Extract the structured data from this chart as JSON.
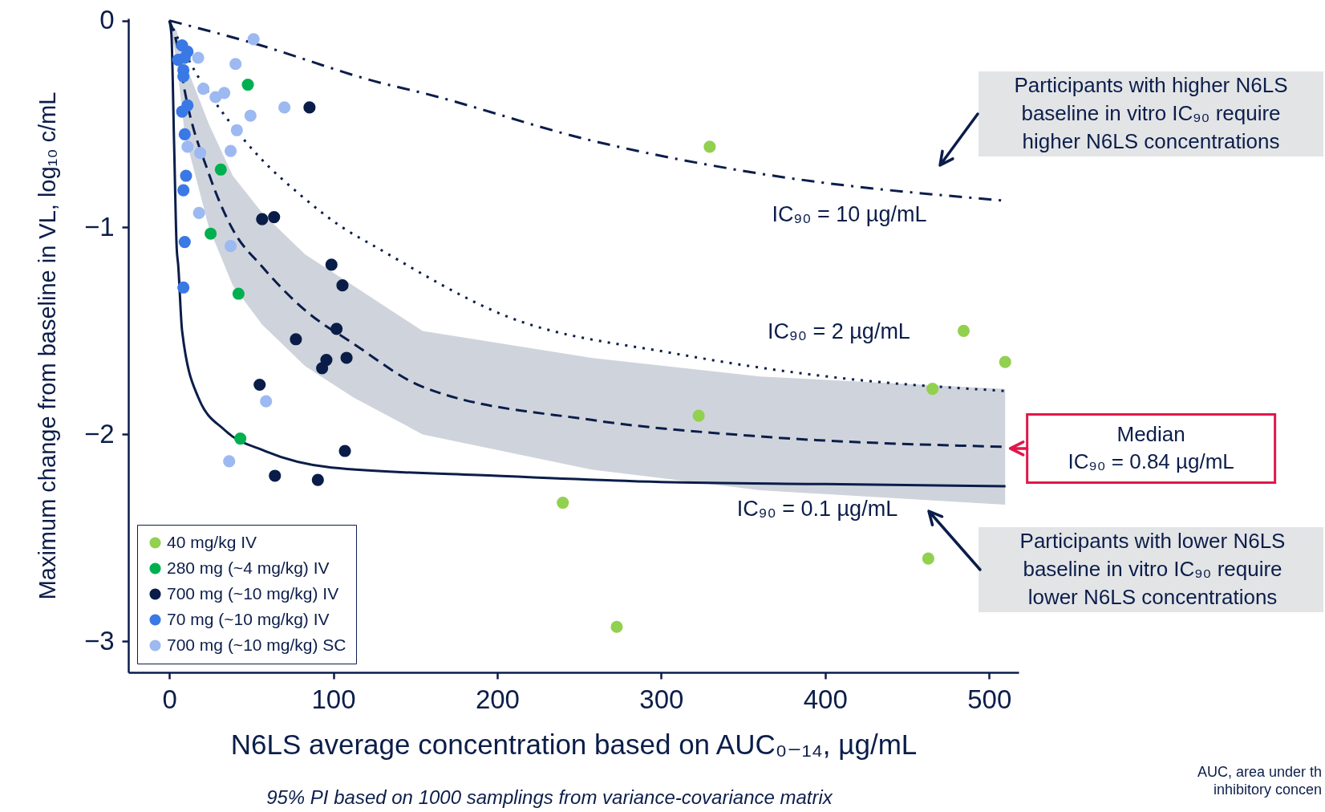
{
  "chart_data": {
    "type": "scatter",
    "xlabel": "N6LS average concentration based on AUC₀₋₁₄, µg/mL",
    "ylabel": "Maximum change from baseline in VL, log₁₀ c/mL",
    "xlim": [
      -25,
      518
    ],
    "ylim": [
      -3.15,
      0.01
    ],
    "xticks": [
      0,
      100,
      200,
      300,
      400,
      500
    ],
    "yticks": [
      0,
      -1,
      -2,
      -3
    ],
    "grid": false,
    "legend": "bottom left",
    "series": [
      {
        "type": "line",
        "color": "#0b1d4a",
        "line_style": "dashed",
        "x": [
          0,
          4.5,
          9.4,
          24.1,
          38.7,
          56.7,
          82.8,
          112,
          154.5,
          257.5,
          360.4,
          509.8
        ],
        "values": [
          0,
          -0.11,
          -0.34,
          -0.74,
          -1.01,
          -1.19,
          -1.4,
          -1.56,
          -1.77,
          -1.93,
          -2.01,
          -2.06
        ],
        "lower": [
          0,
          -0.2,
          -0.55,
          -1.0,
          -1.28,
          -1.47,
          -1.67,
          -1.82,
          -2.0,
          -2.17,
          -2.27,
          -2.34
        ],
        "upper": [
          0,
          -0.05,
          -0.2,
          -0.5,
          -0.75,
          -0.93,
          -1.13,
          -1.28,
          -1.5,
          -1.63,
          -1.72,
          -1.78
        ]
      },
      {
        "type": "line",
        "color": "#0b1d4a",
        "line_style": "dashdot",
        "x": [
          0,
          51.5,
          128.4,
          154.5,
          257.5,
          360.4,
          508.8
        ],
        "values": [
          0,
          -0.11,
          -0.3,
          -0.35,
          -0.58,
          -0.74,
          -0.87
        ]
      },
      {
        "type": "line",
        "color": "#0b1d4a",
        "line_style": "dotted",
        "x": [
          0,
          16,
          33.9,
          55,
          79.5,
          105.6,
          125,
          206,
          309,
          412,
          509.8
        ],
        "values": [
          0,
          -0.25,
          -0.46,
          -0.66,
          -0.84,
          -1.0,
          -1.09,
          -1.43,
          -1.61,
          -1.73,
          -1.79
        ]
      },
      {
        "type": "line",
        "color": "#0b1d4a",
        "line_style": "solid",
        "x": [
          0,
          1.3,
          2.9,
          4.5,
          5.4,
          7.8,
          17.6,
          33.9,
          58.3,
          99,
          200,
          300,
          400,
          510
        ],
        "values": [
          0,
          -0.07,
          -0.59,
          -1.1,
          -1.18,
          -1.5,
          -1.82,
          -1.98,
          -2.08,
          -2.16,
          -2.2,
          -2.23,
          -2.24,
          -2.25
        ]
      },
      {
        "marker": "circle",
        "name": "40 mg/kg IV",
        "color": "#92d050",
        "x": [
          329.6,
          484.5,
          509.8,
          465.5,
          322.9,
          240,
          462.9,
          272.9
        ],
        "values": [
          -0.61,
          -1.5,
          -1.65,
          -1.78,
          -1.91,
          -2.33,
          -2.6,
          -2.93
        ]
      },
      {
        "marker": "circle",
        "name": "280 mg (~4 mg/kg) IV",
        "color": "#00b050",
        "x": [
          47.9,
          31.4,
          25.2,
          42.2,
          43.3
        ],
        "values": [
          -0.31,
          -0.72,
          -1.03,
          -1.32,
          -2.02
        ]
      },
      {
        "marker": "circle",
        "name": "700 mg (~10 mg/kg) IV",
        "color": "#0a1c48",
        "x": [
          85.5,
          56.6,
          63.9,
          98.9,
          105.6,
          77.2,
          102,
          95.8,
          93.2,
          108.1,
          55.1,
          107.1,
          64.4,
          90.6
        ],
        "values": [
          -0.42,
          -0.96,
          -0.95,
          -1.18,
          -1.28,
          -1.54,
          -1.49,
          -1.64,
          -1.68,
          -1.63,
          -1.76,
          -2.08,
          -2.2,
          -2.22
        ]
      },
      {
        "marker": "circle",
        "name": "70 mg (~10 mg/kg) IV",
        "color": "#3a78e6",
        "x": [
          7.8,
          11.1,
          5.4,
          9.4,
          8.6,
          8.6,
          11.1,
          7.8,
          9.4,
          10.2,
          8.6,
          9.4,
          8.6
        ],
        "values": [
          -0.12,
          -0.15,
          -0.19,
          -0.18,
          -0.24,
          -0.27,
          -0.41,
          -0.44,
          -0.55,
          -0.75,
          -0.82,
          -1.07,
          -1.29
        ]
      },
      {
        "marker": "circle",
        "name": "700 mg (~10 mg/kg) SC",
        "color": "#9db9f2",
        "x": [
          51.4,
          17.6,
          40.4,
          20.8,
          28.2,
          33.5,
          70.2,
          49.5,
          41.2,
          11.1,
          18.8,
          37.4,
          18.1,
          37.4,
          59,
          36.5
        ],
        "values": [
          -0.09,
          -0.18,
          -0.21,
          -0.33,
          -0.37,
          -0.35,
          -0.42,
          -0.46,
          -0.53,
          -0.61,
          -0.64,
          -0.63,
          -0.93,
          -1.09,
          -1.84,
          -2.13
        ]
      }
    ],
    "annotations": [
      "95% PI based on 1000 samplings from variance-covariance matrix",
      "AUC, area under th\ninhibitory concen",
      "IC₉₀ = 10 µg/mL",
      "IC₉₀ = 2 µg/mL",
      "IC₉₀ = 0.1 µg/mL",
      "Participants with higher N6LS\nbaseline in vitro IC₉₀ require\nhigher N6LS concentrations",
      "Participants with lower N6LS\nbaseline in vitro IC₉₀ require\nlower N6LS concentrations",
      {
        "text": "Median\nIC₉₀ = 0.84 µg/mL",
        "x": 510,
        "y": -2.06
      }
    ]
  }
}
